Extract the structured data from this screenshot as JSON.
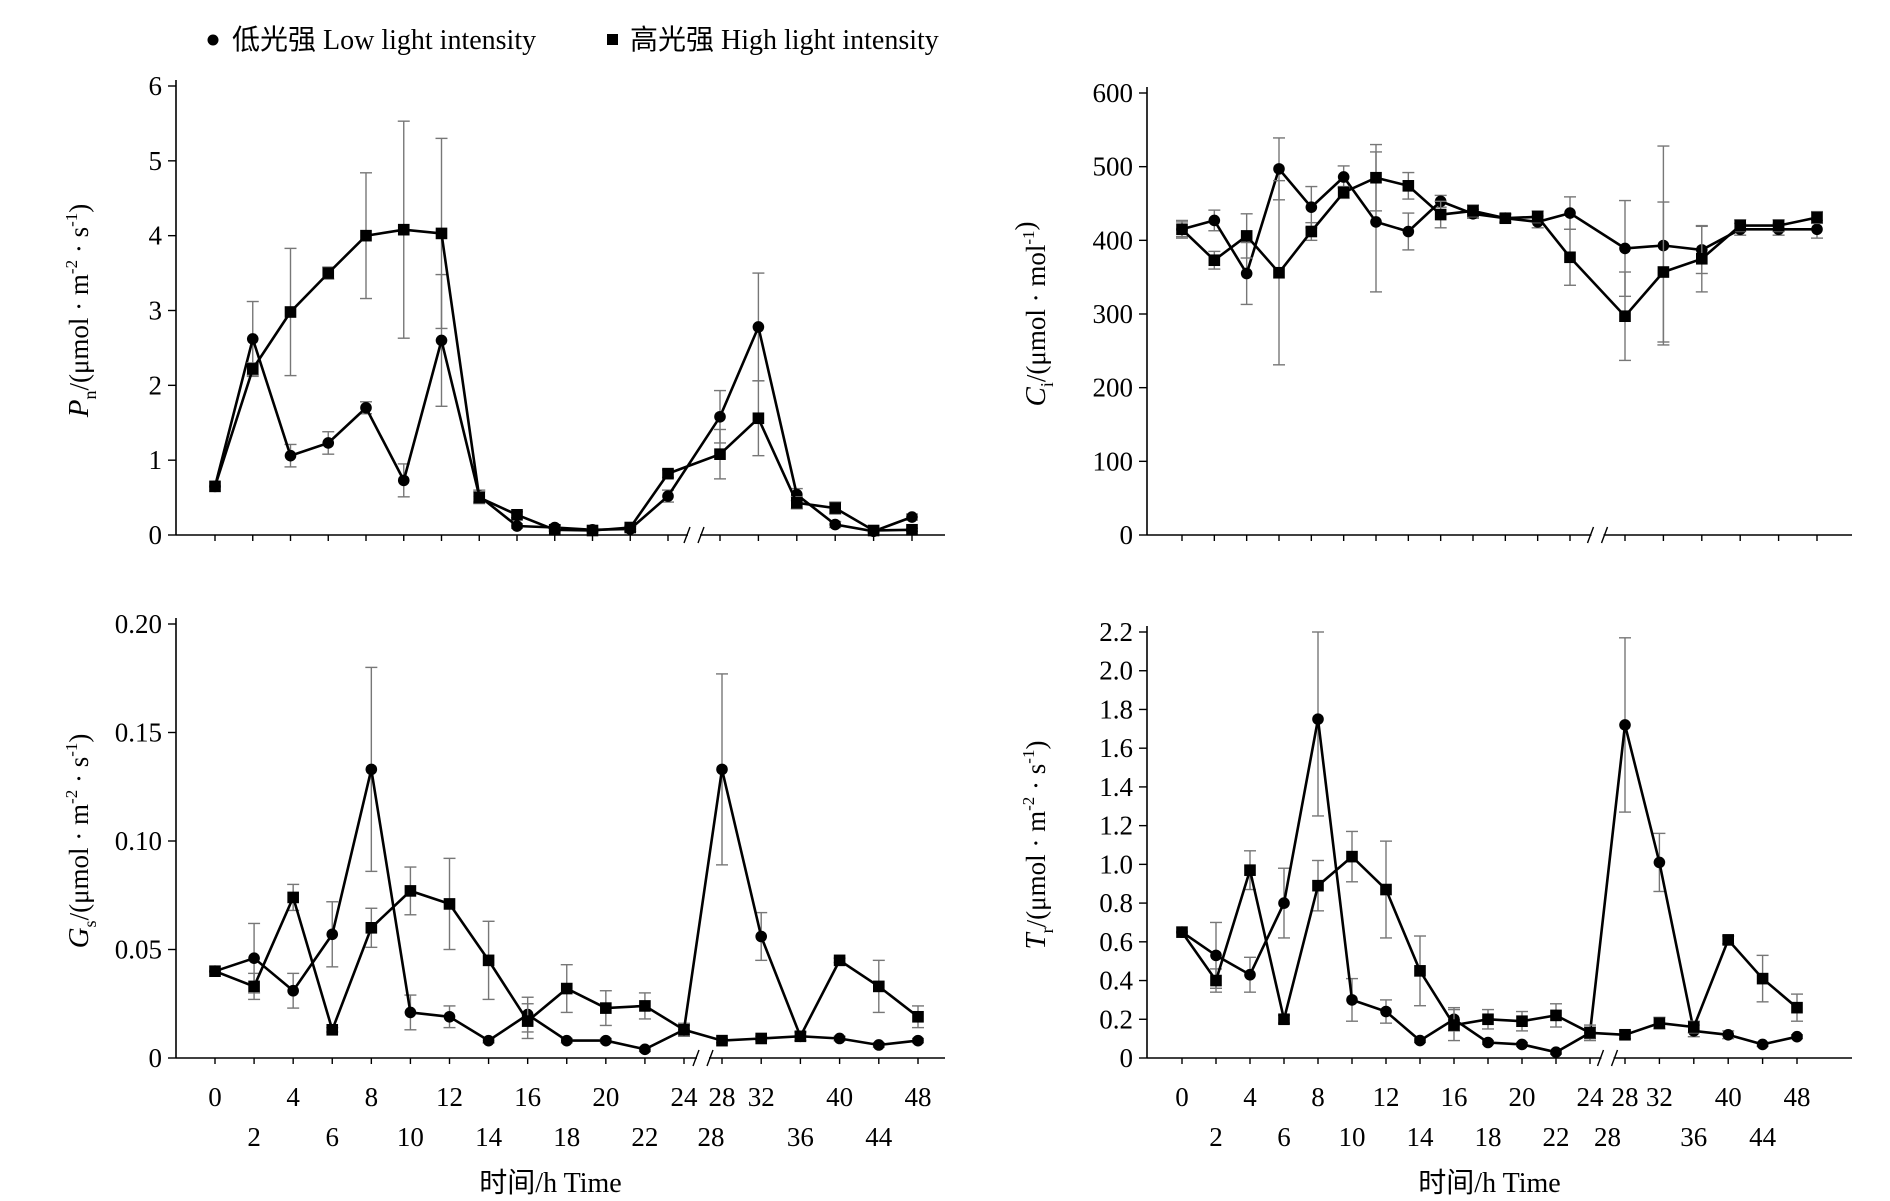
{
  "legend": {
    "low": "低光强 Low light intensity",
    "high": "高光强 High light intensity"
  },
  "chart_data": [
    {
      "id": "pn",
      "type": "line",
      "ylabel_main": "P",
      "ylabel_sub": "n",
      "ylabel_unit_a": "/(μmol · m",
      "ylabel_sup1": "-2",
      "ylabel_unit_b": " · s",
      "ylabel_sup2": "-1",
      "ylabel_unit_c": ")",
      "ylim": [
        0,
        6
      ],
      "yticks": [
        0,
        1,
        2,
        3,
        4,
        5,
        6
      ],
      "ytick_labels": [
        "0",
        "1",
        "2",
        "3",
        "4",
        "5",
        "6"
      ],
      "x_break_between": [
        24,
        28
      ],
      "series": [
        {
          "name": "低光强 Low light intensity",
          "marker": "circle",
          "x": [
            0,
            2,
            4,
            6,
            8,
            10,
            12,
            14,
            16,
            18,
            20,
            22,
            24,
            28,
            32,
            36,
            40,
            44,
            48
          ],
          "y": [
            0.65,
            2.62,
            1.06,
            1.23,
            1.7,
            0.73,
            2.6,
            0.52,
            0.12,
            0.1,
            0.07,
            0.08,
            0.52,
            1.58,
            2.78,
            0.54,
            0.14,
            0.05,
            0.24
          ],
          "err": [
            0,
            0.5,
            0.15,
            0.15,
            0.08,
            0.22,
            0.88,
            0.08,
            0.03,
            0.03,
            0.02,
            0.03,
            0.08,
            0.35,
            0.72,
            0.08,
            0.04,
            0.02,
            0.04
          ]
        },
        {
          "name": "高光强 High light intensity",
          "marker": "square",
          "x": [
            0,
            2,
            4,
            6,
            8,
            10,
            12,
            14,
            16,
            18,
            20,
            22,
            24,
            28,
            32,
            36,
            40,
            44,
            48
          ],
          "y": [
            0.65,
            2.22,
            2.98,
            3.5,
            4.0,
            4.08,
            4.03,
            0.5,
            0.27,
            0.07,
            0.06,
            0.1,
            0.82,
            1.08,
            1.56,
            0.43,
            0.36,
            0.06,
            0.07
          ],
          "err": [
            0,
            0.08,
            0.85,
            0.08,
            0.84,
            1.45,
            1.27,
            0.08,
            0.04,
            0.02,
            0.02,
            0.02,
            0.05,
            0.33,
            0.5,
            0.08,
            0.08,
            0.02,
            0.02
          ]
        }
      ]
    },
    {
      "id": "ci",
      "type": "line",
      "ylabel_main": "C",
      "ylabel_sub": "i",
      "ylabel_unit_a": "/(μmol · mol",
      "ylabel_sup1": "-1",
      "ylabel_unit_b": "",
      "ylabel_sup2": "",
      "ylabel_unit_c": ")",
      "ylim": [
        0,
        600
      ],
      "yticks": [
        0,
        100,
        200,
        300,
        400,
        500,
        600
      ],
      "ytick_labels": [
        "0",
        "100",
        "200",
        "300",
        "400",
        "500",
        "600"
      ],
      "x_break_between": [
        24,
        28
      ],
      "series": [
        {
          "name": "低光强 Low light intensity",
          "marker": "circle",
          "x": [
            0,
            2,
            4,
            6,
            8,
            10,
            12,
            14,
            16,
            18,
            20,
            22,
            24,
            28,
            32,
            36,
            40,
            44,
            48
          ],
          "y": [
            415,
            427,
            355,
            497,
            445,
            486,
            425,
            412,
            453,
            436,
            430,
            425,
            437,
            389,
            393,
            387,
            415,
            415,
            415
          ],
          "err": [
            12,
            14,
            42,
            42,
            28,
            15,
            95,
            25,
            8,
            6,
            5,
            8,
            22,
            65,
            135,
            32,
            8,
            8,
            12
          ]
        },
        {
          "name": "高光强 High light intensity",
          "marker": "square",
          "x": [
            0,
            2,
            4,
            6,
            8,
            10,
            12,
            14,
            16,
            18,
            20,
            22,
            24,
            28,
            32,
            36,
            40,
            44,
            48
          ],
          "y": [
            415,
            373,
            406,
            356,
            412,
            465,
            485,
            474,
            435,
            440,
            430,
            432,
            377,
            297,
            357,
            375,
            420,
            420,
            431
          ],
          "err": [
            10,
            12,
            30,
            125,
            12,
            8,
            45,
            18,
            18,
            8,
            6,
            8,
            38,
            60,
            95,
            45,
            8,
            8,
            8
          ]
        }
      ]
    },
    {
      "id": "gs",
      "type": "line",
      "ylabel_main": "G",
      "ylabel_sub": "s",
      "ylabel_unit_a": "/(μmol · m",
      "ylabel_sup1": "-2",
      "ylabel_unit_b": " · s",
      "ylabel_sup2": "-1",
      "ylabel_unit_c": ")",
      "ylim": [
        0,
        0.2
      ],
      "yticks": [
        0,
        0.05,
        0.1,
        0.15,
        0.2
      ],
      "ytick_labels": [
        "0",
        "0.05",
        "0.10",
        "0.15",
        "0.20"
      ],
      "xticks_row1": [
        "0",
        "4",
        "8",
        "12",
        "16",
        "20",
        "24",
        "28",
        "32",
        "40",
        "48"
      ],
      "xticks_row2": [
        "2",
        "6",
        "10",
        "14",
        "18",
        "22",
        "28",
        "36",
        "44"
      ],
      "xlabel": "时间/h Time",
      "x_break_between": [
        24,
        28
      ],
      "series": [
        {
          "name": "低光强 Low light intensity",
          "marker": "circle",
          "x": [
            0,
            2,
            4,
            6,
            8,
            10,
            12,
            14,
            16,
            18,
            20,
            22,
            24,
            28,
            32,
            36,
            40,
            44,
            48
          ],
          "y": [
            0.04,
            0.046,
            0.031,
            0.057,
            0.133,
            0.021,
            0.019,
            0.008,
            0.02,
            0.008,
            0.008,
            0.004,
            0.013,
            0.133,
            0.056,
            0.01,
            0.009,
            0.006,
            0.008
          ],
          "err": [
            0,
            0.016,
            0.008,
            0.015,
            0.047,
            0.008,
            0.005,
            0.001,
            0.008,
            0.001,
            0.001,
            0.001,
            0.003,
            0.044,
            0.011,
            0.002,
            0.001,
            0.001,
            0.001
          ]
        },
        {
          "name": "高光强 High light intensity",
          "marker": "square",
          "x": [
            0,
            2,
            4,
            6,
            8,
            10,
            12,
            14,
            16,
            18,
            20,
            22,
            24,
            28,
            32,
            36,
            40,
            44,
            48
          ],
          "y": [
            0.04,
            0.033,
            0.074,
            0.013,
            0.06,
            0.077,
            0.071,
            0.045,
            0.017,
            0.032,
            0.023,
            0.024,
            0.013,
            0.008,
            0.009,
            0.01,
            0.045,
            0.033,
            0.019
          ],
          "err": [
            0,
            0.006,
            0.006,
            0.001,
            0.009,
            0.011,
            0.021,
            0.018,
            0.008,
            0.011,
            0.008,
            0.006,
            0.002,
            0.001,
            0.001,
            0.002,
            0.001,
            0.012,
            0.005
          ]
        }
      ]
    },
    {
      "id": "tr",
      "type": "line",
      "ylabel_main": "T",
      "ylabel_sub": "r",
      "ylabel_unit_a": "/(μmol · m",
      "ylabel_sup1": "-2",
      "ylabel_unit_b": " · s",
      "ylabel_sup2": "-1",
      "ylabel_unit_c": ")",
      "ylim": [
        0,
        2.2
      ],
      "yticks": [
        0,
        0.2,
        0.4,
        0.6,
        0.8,
        1.0,
        1.2,
        1.4,
        1.6,
        1.8,
        2.0,
        2.2
      ],
      "ytick_labels": [
        "0",
        "0.2",
        "0.4",
        "0.6",
        "0.8",
        "1.0",
        "1.2",
        "1.4",
        "1.6",
        "1.8",
        "2.0",
        "2.2"
      ],
      "xticks_row1": [
        "0",
        "4",
        "8",
        "12",
        "16",
        "20",
        "24",
        "28",
        "32",
        "40",
        "48"
      ],
      "xticks_row2": [
        "2",
        "6",
        "10",
        "14",
        "18",
        "22",
        "28",
        "36",
        "44"
      ],
      "xlabel": "时间/h Time",
      "x_break_between": [
        24,
        28
      ],
      "series": [
        {
          "name": "低光强 Low light intensity",
          "marker": "circle",
          "x": [
            0,
            2,
            4,
            6,
            8,
            10,
            12,
            14,
            16,
            18,
            20,
            22,
            24,
            28,
            32,
            36,
            40,
            44,
            48
          ],
          "y": [
            0.65,
            0.53,
            0.43,
            0.8,
            1.75,
            0.3,
            0.24,
            0.09,
            0.2,
            0.08,
            0.07,
            0.03,
            0.13,
            1.72,
            1.01,
            0.14,
            0.12,
            0.07,
            0.11
          ],
          "err": [
            0,
            0.17,
            0.09,
            0.18,
            0.5,
            0.11,
            0.06,
            0.01,
            0.06,
            0.01,
            0.01,
            0.01,
            0.03,
            0.45,
            0.15,
            0.03,
            0.02,
            0.01,
            0.01
          ]
        },
        {
          "name": "高光强 High light intensity",
          "marker": "square",
          "x": [
            0,
            2,
            4,
            6,
            8,
            10,
            12,
            14,
            16,
            18,
            20,
            22,
            24,
            28,
            32,
            36,
            40,
            44,
            48
          ],
          "y": [
            0.65,
            0.4,
            0.97,
            0.2,
            0.89,
            1.04,
            0.87,
            0.45,
            0.17,
            0.2,
            0.19,
            0.22,
            0.13,
            0.12,
            0.18,
            0.16,
            0.61,
            0.41,
            0.26
          ],
          "err": [
            0,
            0.06,
            0.1,
            0.02,
            0.13,
            0.13,
            0.25,
            0.18,
            0.08,
            0.05,
            0.05,
            0.06,
            0.04,
            0.02,
            0.03,
            0.03,
            0.02,
            0.12,
            0.07
          ]
        }
      ]
    }
  ]
}
